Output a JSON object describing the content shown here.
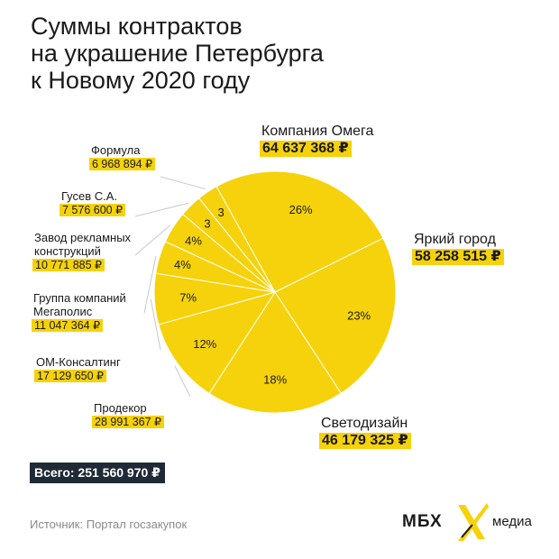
{
  "header": {
    "title_lines": [
      "Суммы контрактов",
      "на украшение Петербурга",
      "к Новому 2020 году"
    ]
  },
  "chart_data": {
    "type": "pie",
    "title": "Суммы контрактов на украшение Петербурга к Новому 2020 году",
    "currency": "₽",
    "slices": [
      {
        "name": "Компания Омега",
        "value": 64637368,
        "value_label": "64 637 368 ₽",
        "percent_label": "26%",
        "color": "#f5d20b"
      },
      {
        "name": "Яркий город",
        "value": 58258515,
        "value_label": "58 258 515 ₽",
        "percent_label": "23%",
        "color": "#f5d20b"
      },
      {
        "name": "Светодизайн",
        "value": 46179325,
        "value_label": "46 179 325 ₽",
        "percent_label": "18%",
        "color": "#f5d20b"
      },
      {
        "name": "Продекор",
        "value": 28991367,
        "value_label": "28 991 367 ₽",
        "percent_label": "12%",
        "color": "#f5d20b"
      },
      {
        "name": "ОМ-Консалтинг",
        "value": 17129650,
        "value_label": "17 129 650 ₽",
        "percent_label": "7%",
        "color": "#f5d20b"
      },
      {
        "name": "Группа компаний Мегаполис",
        "name_lines": [
          "Группа компаний",
          "Мегаполис"
        ],
        "value": 11047364,
        "value_label": "11 047 364 ₽",
        "percent_label": "4%",
        "color": "#f5d20b"
      },
      {
        "name": "Завод рекламных конструкций",
        "name_lines": [
          "Завод рекламных",
          "конструкций"
        ],
        "value": 10771885,
        "value_label": "10 771 885 ₽",
        "percent_label": "4%",
        "color": "#f5d20b"
      },
      {
        "name": "Гусев С.А.",
        "value": 7576600,
        "value_label": "7 576 600 ₽",
        "percent_label": "3",
        "color": "#f5d20b"
      },
      {
        "name": "Формула",
        "value": 6968894,
        "value_label": "6 968 894 ₽",
        "percent_label": "3",
        "color": "#f5d20b"
      }
    ],
    "slice_border_color": "#ffffff",
    "leader_line_color": "#c9c9c9"
  },
  "total": {
    "label": "Всего: 251 560 970 ₽"
  },
  "footer": {
    "source": "Источник: Портал госзакупок",
    "brand_left": "МБХ",
    "brand_right": "медиа",
    "brand_mark_color": "#f5d20b"
  }
}
